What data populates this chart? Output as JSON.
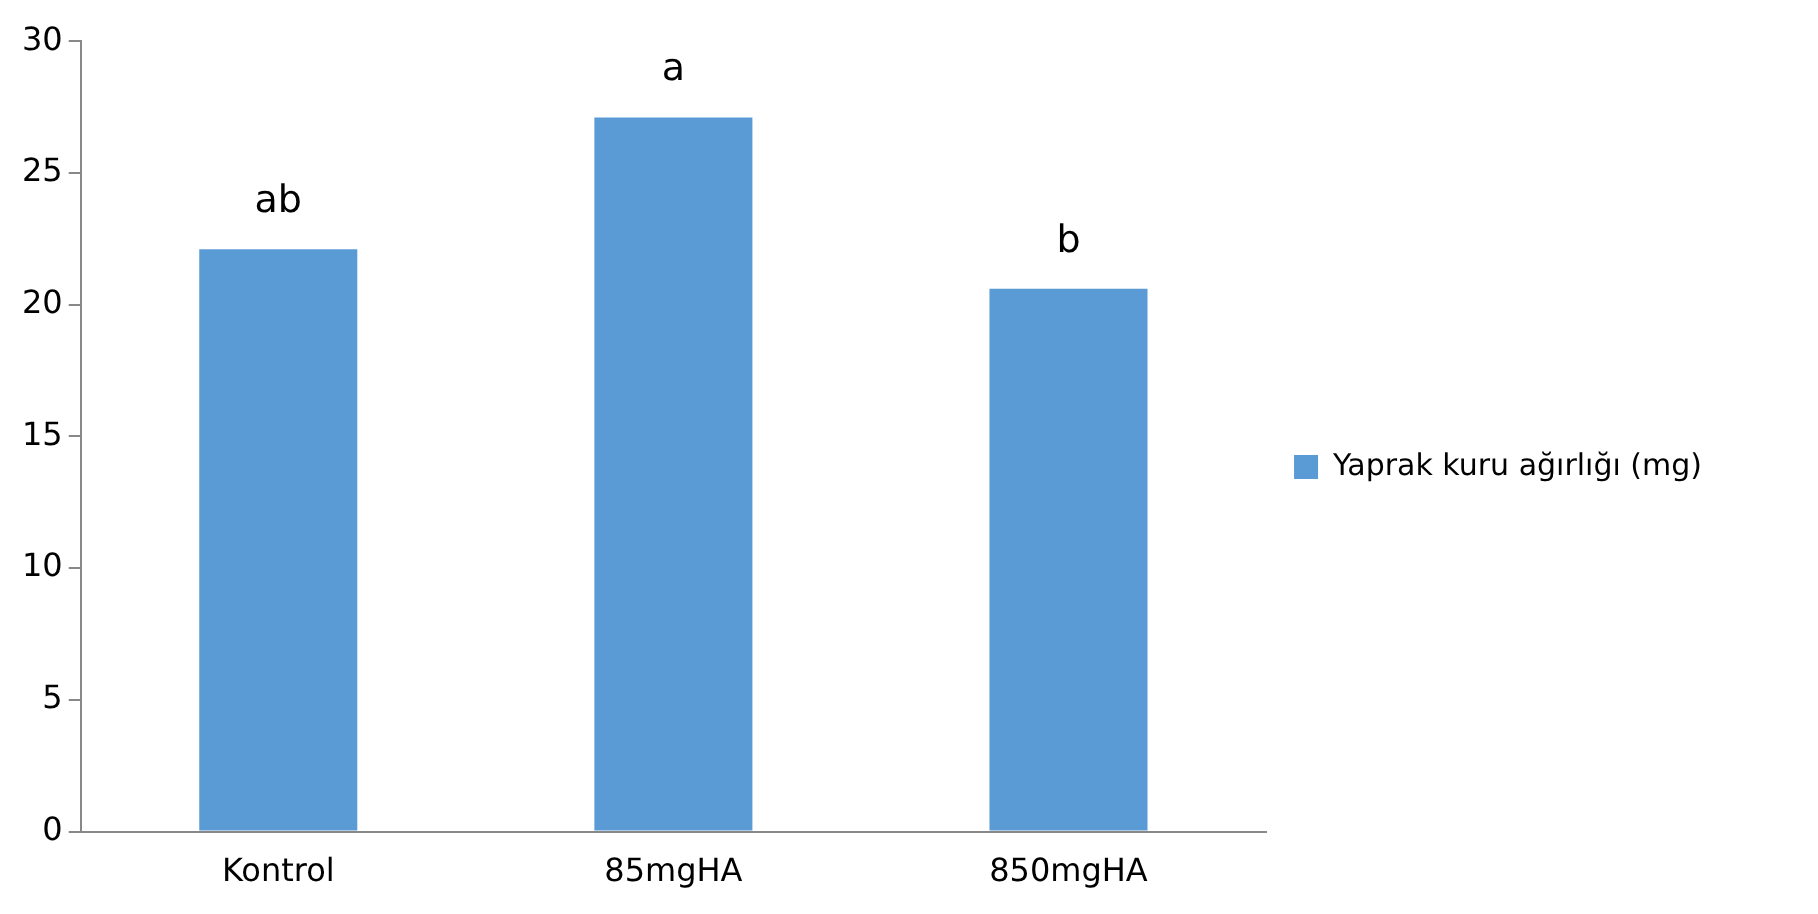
{
  "chart_data": {
    "type": "bar",
    "categories": [
      "Kontrol",
      "85mgHA",
      "850mgHA"
    ],
    "series": [
      {
        "name": "Yaprak kuru ağırlığı (mg)",
        "color": "#5b9bd5",
        "values": [
          22.1,
          27.1,
          20.6
        ]
      }
    ],
    "ylim": [
      0,
      30
    ],
    "yticks": [
      0,
      5,
      10,
      15,
      20,
      25,
      30
    ],
    "grid": false,
    "legend": "right",
    "annotations": [
      {
        "text": "ab",
        "x": "Kontrol",
        "y": 22.1
      },
      {
        "text": "a",
        "x": "85mgHA",
        "y": 27.1
      },
      {
        "text": "b",
        "x": "850mgHA",
        "y": 20.6
      }
    ]
  }
}
